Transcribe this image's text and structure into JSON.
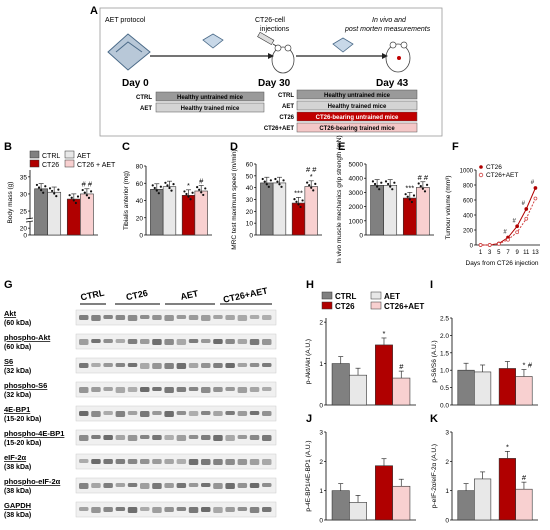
{
  "panel_a": {
    "letter": "A",
    "aet_protocol": "AET protocol",
    "ct26_injections_1": "CT26-cell",
    "ct26_injections_2": "injections",
    "in_vivo_1": "In vivo and",
    "in_vivo_2": "post morten measurements",
    "day0": "Day 0",
    "day30": "Day 30",
    "day43": "Day 43",
    "rows_left": [
      {
        "tag": "CTRL",
        "text": "Healthy untrained mice",
        "color": "#9a9a9a"
      },
      {
        "tag": "AET",
        "text": "Healthy trained mice",
        "color": "#d4d4d4"
      }
    ],
    "rows_right": [
      {
        "tag": "CTRL",
        "text": "Healthy untrained mice",
        "color": "#9a9a9a"
      },
      {
        "tag": "AET",
        "text": "Healthy trained mice",
        "color": "#d4d4d4"
      },
      {
        "tag": "CT26",
        "text": "CT26-bearing untrained mice",
        "color": "#c00000"
      },
      {
        "tag": "CT26+AET",
        "text": "CT26-bearing trained mice",
        "color": "#f4c7c7"
      }
    ]
  },
  "legend": {
    "ctrl": "CTRL",
    "ct26": "CT26",
    "aet": "AET",
    "ct26_aet": "CT26 + AET",
    "ctrl2": "CTRL",
    "ct26_2": "CT26",
    "aet2": "AET",
    "ct26_aet2": "CT26+AET",
    "f_ct26": "CT26",
    "f_ct26_aet": "CT26+AET"
  },
  "colors": {
    "ctrl": "#808080",
    "aet": "#e8e8e8",
    "ct26": "#b00000",
    "ct26_aet": "#f8d0d0"
  },
  "panel_g": {
    "letter": "G",
    "groups": [
      "CTRL",
      "CT26",
      "AET",
      "CT26+AET"
    ],
    "blots": [
      {
        "name": "Akt",
        "kda": "(60 kDa)"
      },
      {
        "name": "phospho-Akt",
        "kda": "(60 kDa)"
      },
      {
        "name": "S6",
        "kda": "(32 kDa)"
      },
      {
        "name": "phospho-S6",
        "kda": "(32 kDa)"
      },
      {
        "name": "4E-BP1",
        "kda": "(15-20 kDa)"
      },
      {
        "name": "phospho-4E-BP1",
        "kda": "(15-20 kDa)"
      },
      {
        "name": "eIF-2α",
        "kda": "(38 kDa)"
      },
      {
        "name": "phospho-eIF-2α",
        "kda": "(38 kDa)"
      },
      {
        "name": "GAPDH",
        "kda": "(38 kDa)"
      }
    ]
  },
  "chart_data": [
    {
      "panel": "B",
      "type": "bar",
      "ylabel": "Body mass (g)",
      "yticks": [
        "0",
        "20",
        "25",
        "30",
        "35"
      ],
      "categories": [
        "CTRL",
        "AET",
        "CT26",
        "CT26 + AET"
      ],
      "values": [
        31.5,
        30.5,
        28.5,
        30.0
      ],
      "significance": [
        [
          "",
          ""
        ],
        [
          "",
          ""
        ],
        [
          "",
          ""
        ],
        [
          "# #",
          ""
        ]
      ]
    },
    {
      "panel": "C",
      "type": "bar",
      "ylabel": "Tibialis anterior (mg)",
      "yticks": [
        "0",
        "20",
        "40",
        "60",
        "80"
      ],
      "categories": [
        "CTRL",
        "AET",
        "CT26",
        "CT26 + AET"
      ],
      "values": [
        53,
        56,
        46,
        51
      ],
      "significance": [
        [
          "",
          ""
        ],
        [
          "",
          ""
        ],
        [
          "*",
          ""
        ],
        [
          "#",
          ""
        ]
      ]
    },
    {
      "panel": "D",
      "type": "bar",
      "ylabel": "MRC test maximum speed (m/min)",
      "yticks": [
        "0",
        "10",
        "20",
        "30",
        "40",
        "50",
        "60"
      ],
      "categories": [
        "CTRL",
        "AET",
        "CT26",
        "CT26 + AET"
      ],
      "values": [
        44,
        44,
        27,
        41
      ],
      "significance": [
        [
          "",
          ""
        ],
        [
          "",
          ""
        ],
        [
          "***",
          ""
        ],
        [
          "*",
          "# #"
        ]
      ]
    },
    {
      "panel": "E",
      "type": "bar",
      "ylabel": "In vivo muscle mechanics grip strength (mN)",
      "yticks": [
        "0",
        "1000",
        "2000",
        "3000",
        "4000",
        "5000"
      ],
      "categories": [
        "CTRL",
        "AET",
        "CT26",
        "CT26 + AET"
      ],
      "values": [
        3500,
        3500,
        2600,
        3350
      ],
      "significance": [
        [
          "",
          ""
        ],
        [
          "",
          ""
        ],
        [
          "***",
          ""
        ],
        [
          "# #",
          ""
        ]
      ]
    },
    {
      "panel": "F",
      "type": "line",
      "ylabel": "Tumour volume (mm³)",
      "xlabel": "Days from CT26 injection",
      "x": [
        1,
        3,
        5,
        7,
        9,
        11,
        13
      ],
      "yticks": [
        "0",
        "200",
        "400",
        "600",
        "800",
        "1000"
      ],
      "series": [
        {
          "name": "CT26",
          "values": [
            0,
            0,
            20,
            100,
            250,
            480,
            760
          ]
        },
        {
          "name": "CT26+AET",
          "values": [
            0,
            0,
            15,
            70,
            170,
            350,
            620
          ]
        }
      ],
      "annotations": [
        "#",
        "#",
        "#",
        "#"
      ]
    },
    {
      "panel": "H",
      "type": "bar",
      "ylabel": "p-Akt/Akt (A.U.)",
      "yticks": [
        "0",
        "1",
        "2"
      ],
      "categories": [
        "CTRL",
        "AET",
        "CT26",
        "CT26+AET"
      ],
      "values": [
        1.0,
        0.72,
        1.45,
        0.65
      ],
      "significance": [
        [
          "",
          ""
        ],
        [
          "",
          ""
        ],
        [
          "*",
          ""
        ],
        [
          "#",
          ""
        ]
      ]
    },
    {
      "panel": "I",
      "type": "bar",
      "ylabel": "p-S6/S6 (A.U.)",
      "yticks": [
        "0.0",
        "0.5",
        "1.0",
        "1.5",
        "2.0",
        "2.5"
      ],
      "categories": [
        "CTRL",
        "AET",
        "CT26",
        "CT26+AET"
      ],
      "values": [
        1.0,
        0.95,
        1.05,
        0.82
      ],
      "significance": [
        [
          "",
          ""
        ],
        [
          "",
          ""
        ],
        [
          "",
          ""
        ],
        [
          "*",
          "#"
        ]
      ]
    },
    {
      "panel": "J",
      "type": "bar",
      "ylabel": "p-4E-BP1/4E-BP1 (A.U.)",
      "yticks": [
        "0",
        "1",
        "2",
        "3"
      ],
      "categories": [
        "CTRL",
        "AET",
        "CT26",
        "CT26+AET"
      ],
      "values": [
        1.0,
        0.6,
        1.85,
        1.15
      ],
      "significance": [
        [
          "",
          ""
        ],
        [
          "",
          ""
        ],
        [
          "",
          ""
        ],
        [
          "",
          ""
        ]
      ]
    },
    {
      "panel": "K",
      "type": "bar",
      "ylabel": "p-eIF-2α/eIF-2α (A.U.)",
      "yticks": [
        "0",
        "1",
        "2",
        "3"
      ],
      "categories": [
        "CTRL",
        "AET",
        "CT26",
        "CT26+AET"
      ],
      "values": [
        1.0,
        1.4,
        2.1,
        1.05
      ],
      "significance": [
        [
          "",
          ""
        ],
        [
          "",
          ""
        ],
        [
          "*",
          ""
        ],
        [
          "#",
          ""
        ]
      ]
    }
  ]
}
